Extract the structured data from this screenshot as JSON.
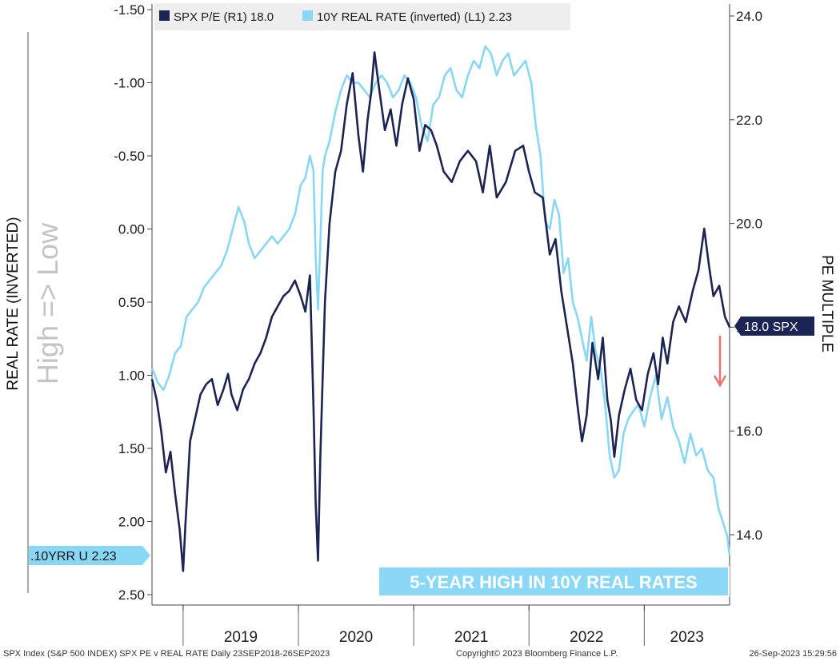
{
  "chart_data": {
    "type": "line",
    "title": "",
    "x_axis": {
      "start": "2018-09-23",
      "end": "2023-09-26",
      "tick_labels": [
        "2019",
        "2020",
        "2021",
        "2022",
        "2023"
      ]
    },
    "left_axis": {
      "label": "REAL RATE (INVERTED)",
      "inverted": true,
      "range": [
        -1.5,
        2.5
      ],
      "tick_labels": [
        "-1.50",
        "-1.00",
        "-0.50",
        "0.00",
        "0.50",
        "1.00",
        "1.50",
        "2.00",
        "2.50"
      ],
      "annotation": "High => Low"
    },
    "right_axis": {
      "label": "PE MULTIPLE",
      "range": [
        13.0,
        24.0
      ],
      "tick_labels": [
        "24.0",
        "22.0",
        "20.0",
        "18.0",
        "16.0",
        "14.0"
      ]
    },
    "legend": [
      {
        "text": "SPX P/E (R1) 18.0",
        "color": "#1b2453"
      },
      {
        "text": "10Y REAL RATE (inverted) (L1) 2.23",
        "color": "#87d7f5"
      }
    ],
    "series": [
      {
        "name": "SPX P/E",
        "axis": "right",
        "color": "#1b2453",
        "x": [
          2018.73,
          2018.77,
          2018.81,
          2018.85,
          2018.89,
          2018.93,
          2018.97,
          2019.0,
          2019.02,
          2019.06,
          2019.1,
          2019.15,
          2019.2,
          2019.25,
          2019.3,
          2019.35,
          2019.39,
          2019.42,
          2019.47,
          2019.52,
          2019.57,
          2019.62,
          2019.67,
          2019.72,
          2019.77,
          2019.82,
          2019.87,
          2019.92,
          2019.97,
          2020.02,
          2020.06,
          2020.1,
          2020.13,
          2020.15,
          2020.17,
          2020.19,
          2020.21,
          2020.23,
          2020.27,
          2020.32,
          2020.37,
          2020.42,
          2020.47,
          2020.52,
          2020.56,
          2020.6,
          2020.63,
          2020.66,
          2020.7,
          2020.75,
          2020.8,
          2020.85,
          2020.9,
          2020.95,
          2021.0,
          2021.05,
          2021.1,
          2021.15,
          2021.2,
          2021.26,
          2021.33,
          2021.4,
          2021.47,
          2021.54,
          2021.6,
          2021.66,
          2021.72,
          2021.8,
          2021.88,
          2021.95,
          2022.0,
          2022.05,
          2022.12,
          2022.18,
          2022.23,
          2022.28,
          2022.33,
          2022.38,
          2022.42,
          2022.46,
          2022.5,
          2022.55,
          2022.6,
          2022.64,
          2022.68,
          2022.71,
          2022.74,
          2022.78,
          2022.83,
          2022.88,
          2022.93,
          2022.98,
          2023.03,
          2023.08,
          2023.12,
          2023.16,
          2023.2,
          2023.25,
          2023.3,
          2023.36,
          2023.42,
          2023.47,
          2023.52,
          2023.56,
          2023.6,
          2023.65,
          2023.7,
          2023.74
        ],
        "values": [
          17.0,
          16.6,
          16.0,
          15.2,
          15.6,
          14.8,
          14.1,
          13.3,
          14.2,
          15.8,
          16.2,
          16.7,
          16.9,
          17.0,
          16.5,
          16.8,
          17.1,
          16.7,
          16.4,
          16.8,
          17.0,
          17.3,
          17.5,
          17.8,
          18.2,
          18.4,
          18.6,
          18.7,
          18.9,
          18.6,
          18.3,
          19.0,
          16.5,
          14.6,
          13.5,
          15.5,
          17.0,
          18.5,
          20.0,
          21.0,
          21.4,
          22.3,
          22.9,
          21.7,
          21.0,
          22.0,
          22.5,
          23.3,
          22.6,
          21.8,
          22.2,
          21.5,
          22.3,
          22.8,
          22.4,
          21.4,
          21.9,
          21.8,
          21.5,
          21.0,
          20.8,
          21.2,
          21.4,
          21.2,
          20.6,
          21.5,
          20.5,
          20.8,
          21.4,
          21.5,
          21.0,
          20.6,
          20.5,
          19.4,
          19.7,
          18.7,
          18.0,
          17.3,
          16.5,
          15.8,
          16.3,
          17.7,
          17.0,
          17.8,
          16.6,
          16.2,
          15.5,
          16.3,
          16.8,
          17.2,
          16.6,
          16.4,
          17.1,
          17.5,
          16.9,
          17.8,
          17.3,
          18.1,
          18.4,
          18.1,
          18.7,
          19.1,
          19.9,
          19.2,
          18.6,
          18.8,
          18.2,
          18.0
        ]
      },
      {
        "name": "10Y REAL RATE (inverted)",
        "axis": "left",
        "color": "#87d7f5",
        "x": [
          2018.73,
          2018.78,
          2018.83,
          2018.88,
          2018.93,
          2018.98,
          2019.03,
          2019.08,
          2019.13,
          2019.18,
          2019.23,
          2019.28,
          2019.33,
          2019.38,
          2019.43,
          2019.48,
          2019.53,
          2019.57,
          2019.62,
          2019.67,
          2019.72,
          2019.77,
          2019.82,
          2019.87,
          2019.92,
          2019.97,
          2020.02,
          2020.06,
          2020.1,
          2020.13,
          2020.15,
          2020.17,
          2020.19,
          2020.21,
          2020.23,
          2020.27,
          2020.32,
          2020.37,
          2020.42,
          2020.47,
          2020.52,
          2020.57,
          2020.62,
          2020.67,
          2020.72,
          2020.77,
          2020.82,
          2020.87,
          2020.92,
          2020.97,
          2021.02,
          2021.07,
          2021.12,
          2021.17,
          2021.22,
          2021.27,
          2021.32,
          2021.37,
          2021.42,
          2021.47,
          2021.52,
          2021.57,
          2021.62,
          2021.67,
          2021.72,
          2021.77,
          2021.82,
          2021.87,
          2021.92,
          2021.97,
          2022.02,
          2022.06,
          2022.1,
          2022.14,
          2022.18,
          2022.22,
          2022.26,
          2022.3,
          2022.34,
          2022.38,
          2022.42,
          2022.46,
          2022.5,
          2022.54,
          2022.58,
          2022.62,
          2022.66,
          2022.7,
          2022.74,
          2022.78,
          2022.82,
          2022.86,
          2022.9,
          2022.95,
          2023.0,
          2023.05,
          2023.1,
          2023.15,
          2023.2,
          2023.25,
          2023.3,
          2023.35,
          2023.4,
          2023.45,
          2023.5,
          2023.55,
          2023.6,
          2023.64,
          2023.68,
          2023.72,
          2023.74
        ],
        "values": [
          0.95,
          1.05,
          1.1,
          1.0,
          0.85,
          0.8,
          0.6,
          0.55,
          0.5,
          0.4,
          0.35,
          0.3,
          0.25,
          0.15,
          0.0,
          -0.15,
          -0.05,
          0.1,
          0.2,
          0.15,
          0.1,
          0.05,
          0.1,
          0.05,
          0.0,
          -0.1,
          -0.3,
          -0.35,
          -0.5,
          -0.4,
          0.2,
          0.55,
          0.1,
          -0.4,
          -0.5,
          -0.6,
          -0.8,
          -0.95,
          -1.05,
          -1.0,
          -1.0,
          -0.95,
          -0.9,
          -1.0,
          -1.05,
          -1.0,
          -0.9,
          -0.95,
          -1.05,
          -1.0,
          -0.9,
          -0.7,
          -0.6,
          -0.85,
          -0.9,
          -1.05,
          -1.1,
          -0.95,
          -0.9,
          -1.05,
          -1.15,
          -1.1,
          -1.25,
          -1.2,
          -1.05,
          -1.15,
          -1.2,
          -1.05,
          -1.1,
          -1.15,
          -1.0,
          -0.7,
          -0.5,
          -0.05,
          0.0,
          -0.2,
          -0.1,
          0.3,
          0.2,
          0.5,
          0.6,
          0.75,
          0.9,
          0.6,
          0.85,
          0.95,
          1.2,
          1.55,
          1.7,
          1.65,
          1.4,
          1.3,
          1.25,
          1.2,
          1.35,
          1.15,
          1.0,
          1.3,
          1.15,
          1.35,
          1.45,
          1.6,
          1.4,
          1.55,
          1.5,
          1.65,
          1.7,
          1.9,
          2.0,
          2.1,
          2.23
        ]
      }
    ]
  },
  "tags": {
    "spx": "18.0 SPX",
    "real_rate": ".10YRR U 2.23"
  },
  "banner": "5-YEAR HIGH IN 10Y REAL RATES",
  "footer": {
    "left": "SPX Index (S&P 500 INDEX) SPX PE v REAL RATE  Daily 23SEP2018-26SEP2023",
    "center": "Copyright© 2023 Bloomberg Finance L.P.",
    "right": "26-Sep-2023 15:29:56"
  },
  "colors": {
    "spx": "#1b2453",
    "real_rate": "#87d7f5",
    "arrow": "#f07070",
    "banner_bg": "#8ad8f6"
  }
}
